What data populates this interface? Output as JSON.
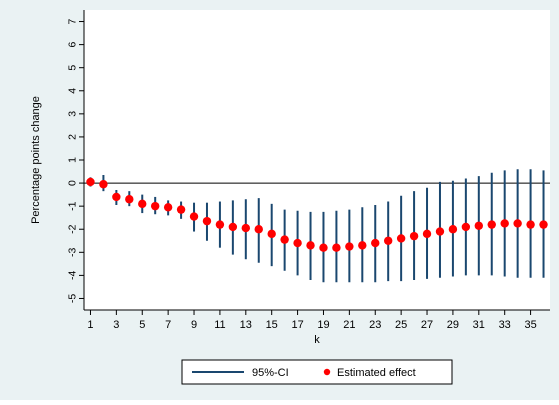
{
  "chart_data": {
    "type": "scatter",
    "title": "",
    "xlabel": "k",
    "ylabel": "Percentage points change",
    "xlim": [
      0.5,
      36.5
    ],
    "ylim": [
      -5.5,
      7.5
    ],
    "x_ticks": [
      1,
      3,
      5,
      7,
      9,
      11,
      13,
      15,
      17,
      19,
      21,
      23,
      25,
      27,
      29,
      31,
      33,
      35
    ],
    "y_ticks": [
      -5,
      -4,
      -3,
      -2,
      -1,
      0,
      1,
      2,
      3,
      4,
      5,
      6,
      7
    ],
    "reference_line": 0,
    "grid": false,
    "legend_position": "bottom",
    "colors": {
      "ci": "#1a476f",
      "estimate": "#ff0000",
      "background": "#eaf2f3",
      "plot": "#ffffff"
    },
    "series": [
      {
        "name": "Estimated effect",
        "marker": "dot",
        "x": [
          1,
          2,
          3,
          4,
          5,
          6,
          7,
          8,
          9,
          10,
          11,
          12,
          13,
          14,
          15,
          16,
          17,
          18,
          19,
          20,
          21,
          22,
          23,
          24,
          25,
          26,
          27,
          28,
          29,
          30,
          31,
          32,
          33,
          34,
          35,
          36
        ],
        "y": [
          0.05,
          -0.05,
          -0.6,
          -0.7,
          -0.9,
          -1.0,
          -1.05,
          -1.15,
          -1.45,
          -1.65,
          -1.8,
          -1.9,
          -1.95,
          -2.0,
          -2.2,
          -2.45,
          -2.6,
          -2.7,
          -2.8,
          -2.8,
          -2.75,
          -2.7,
          -2.6,
          -2.5,
          -2.4,
          -2.3,
          -2.2,
          -2.1,
          -2.0,
          -1.9,
          -1.85,
          -1.8,
          -1.75,
          -1.75,
          -1.8,
          -1.8
        ]
      },
      {
        "name": "95%-CI",
        "marker": "interval",
        "x": [
          1,
          2,
          3,
          4,
          5,
          6,
          7,
          8,
          9,
          10,
          11,
          12,
          13,
          14,
          15,
          16,
          17,
          18,
          19,
          20,
          21,
          22,
          23,
          24,
          25,
          26,
          27,
          28,
          29,
          30,
          31,
          32,
          33,
          34,
          35,
          36
        ],
        "lower": [
          -0.15,
          -0.35,
          -0.95,
          -1.0,
          -1.3,
          -1.35,
          -1.4,
          -1.55,
          -2.1,
          -2.5,
          -2.8,
          -3.1,
          -3.3,
          -3.45,
          -3.6,
          -3.8,
          -4.0,
          -4.2,
          -4.3,
          -4.3,
          -4.3,
          -4.3,
          -4.3,
          -4.25,
          -4.25,
          -4.2,
          -4.15,
          -4.1,
          -4.05,
          -4.0,
          -4.0,
          -4.0,
          -4.05,
          -4.1,
          -4.1,
          -4.1
        ],
        "upper": [
          0.25,
          0.35,
          -0.3,
          -0.35,
          -0.5,
          -0.6,
          -0.75,
          -0.8,
          -0.85,
          -0.85,
          -0.8,
          -0.75,
          -0.7,
          -0.65,
          -0.9,
          -1.15,
          -1.2,
          -1.25,
          -1.25,
          -1.2,
          -1.15,
          -1.05,
          -0.95,
          -0.8,
          -0.55,
          -0.35,
          -0.2,
          0.05,
          0.1,
          0.2,
          0.3,
          0.45,
          0.55,
          0.6,
          0.6,
          0.55
        ]
      }
    ]
  }
}
